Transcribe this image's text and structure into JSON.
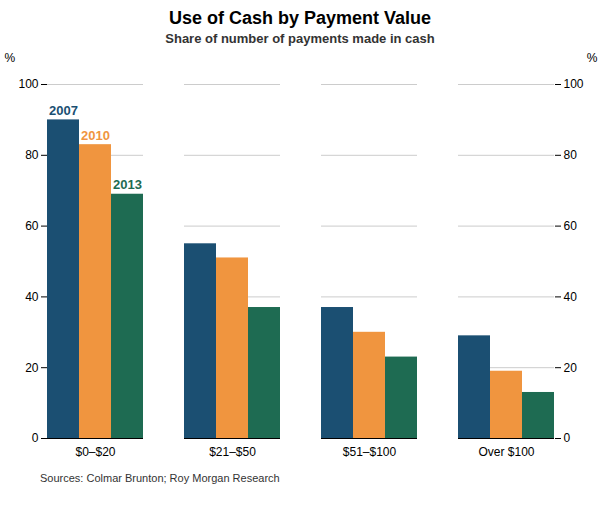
{
  "chart_data": {
    "type": "bar",
    "title": "Use of Cash by Payment Value",
    "subtitle": "Share of number of payments made in cash",
    "source": "Sources:   Colmar Brunton; Roy Morgan Research",
    "categories": [
      "$0–$20",
      "$21–$50",
      "$51–$100",
      "Over $100"
    ],
    "series": [
      {
        "name": "2007",
        "color": "#1b4f72",
        "values": [
          90,
          55,
          37,
          29
        ]
      },
      {
        "name": "2010",
        "color": "#f0953f",
        "values": [
          83,
          51,
          30,
          19
        ]
      },
      {
        "name": "2013",
        "color": "#1e6b52",
        "values": [
          69,
          37,
          23,
          13
        ]
      }
    ],
    "ylim": [
      0,
      100
    ],
    "yticks": [
      0,
      20,
      40,
      60,
      80,
      100
    ],
    "ylabel": "%",
    "y2lim": [
      0,
      100
    ],
    "y2ticks": [
      0,
      20,
      40,
      60,
      80,
      100
    ],
    "y2label": "%",
    "grid": true
  }
}
